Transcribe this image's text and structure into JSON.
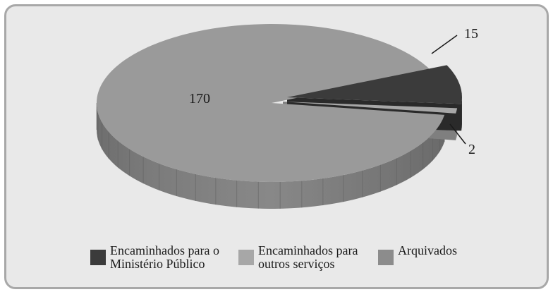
{
  "chart_data": {
    "type": "pie",
    "title": "",
    "slices": [
      {
        "label": "Encaminhados para o Ministério Público",
        "value": 15,
        "color": "#3b3b3b"
      },
      {
        "label": "Encaminhados para outros serviços",
        "value": 2,
        "color": "#a7a7a7"
      },
      {
        "label": "Arquivados",
        "value": 170,
        "color": "#9a9a9a"
      }
    ],
    "data_labels": [
      "15",
      "2",
      "170"
    ],
    "legend_position": "bottom",
    "three_d": true
  },
  "legend": {
    "items": [
      {
        "line1": "Encaminhados para o",
        "line2": "Ministério Público",
        "color": "#3b3b3b"
      },
      {
        "line1": "Encaminhados para",
        "line2": "outros serviços",
        "color": "#a7a7a7"
      },
      {
        "line1": "Arquivados",
        "line2": "",
        "color": "#8c8c8c"
      }
    ]
  }
}
